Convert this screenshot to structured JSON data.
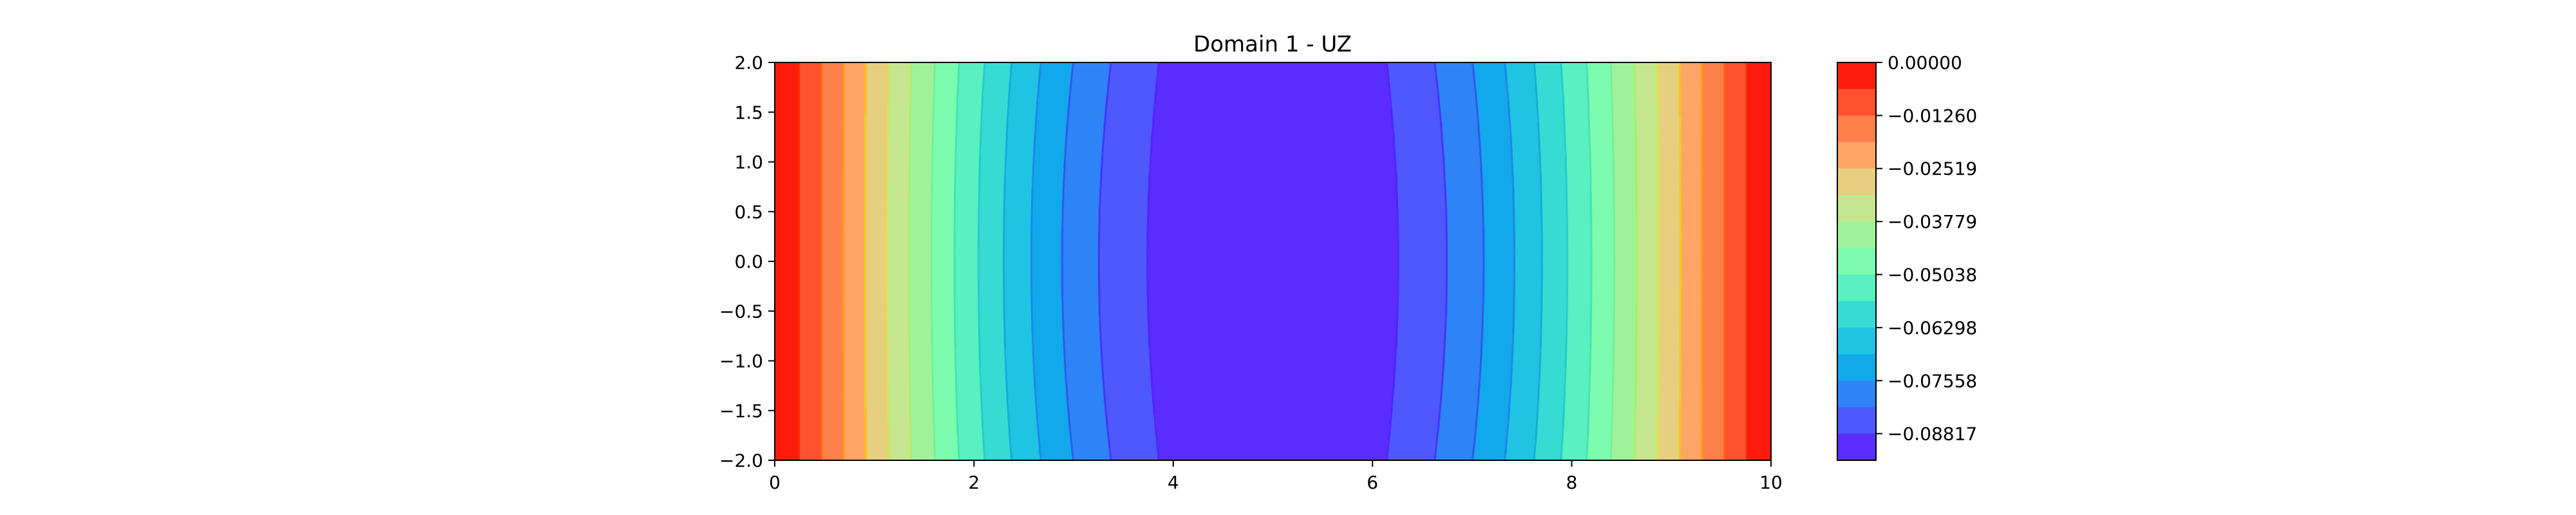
{
  "chart_data": {
    "type": "contourf",
    "title": "Domain 1 - UZ",
    "xlabel": "",
    "ylabel": "",
    "xlim": [
      0,
      10
    ],
    "ylim": [
      -2.0,
      2.0
    ],
    "x_ticks": [
      "0",
      "2",
      "4",
      "6",
      "8",
      "10"
    ],
    "y_ticks": [
      "2.0",
      "1.5",
      "1.0",
      "0.5",
      "0.0",
      "−0.5",
      "−1.0",
      "−1.5",
      "−2.0"
    ],
    "x_tick_values": [
      0,
      2,
      4,
      6,
      8,
      10
    ],
    "y_tick_values": [
      2.0,
      1.5,
      1.0,
      0.5,
      0.0,
      -0.5,
      -1.0,
      -1.5,
      -2.0
    ],
    "colormap": "rainbow",
    "field": {
      "min": -0.0945,
      "max": 0.0,
      "description_profile": "center of domain sags to about -0.095 near x=5; value 0 at x=0 and x=10; contours bulge toward center at y=0"
    },
    "level_boundaries": [
      0.0,
      -0.0063,
      -0.0126,
      -0.0189,
      -0.02519,
      -0.0315,
      -0.03779,
      -0.0441,
      -0.05038,
      -0.0567,
      -0.06298,
      -0.0693,
      -0.07558,
      -0.0819,
      -0.08817,
      -0.0945
    ],
    "level_colors": [
      "#ff1a0e",
      "#ff5030",
      "#ff7f4a",
      "#ffa566",
      "#e6cf7e",
      "#c4e68e",
      "#a0f29a",
      "#7dfbae",
      "#59f0c2",
      "#36dcd4",
      "#1ec4e2",
      "#12a8ec",
      "#2e83f6",
      "#4e58fc",
      "#5a2cff"
    ],
    "colorbar": {
      "tick_labels": [
        "0.00000",
        "−0.01260",
        "−0.02519",
        "−0.03779",
        "−0.05038",
        "−0.06298",
        "−0.07558",
        "−0.08817"
      ],
      "tick_values": [
        0.0,
        -0.0126,
        -0.02519,
        -0.03779,
        -0.05038,
        -0.06298,
        -0.07558,
        -0.08817
      ]
    },
    "grid": false,
    "legend": "colorbar-right"
  }
}
